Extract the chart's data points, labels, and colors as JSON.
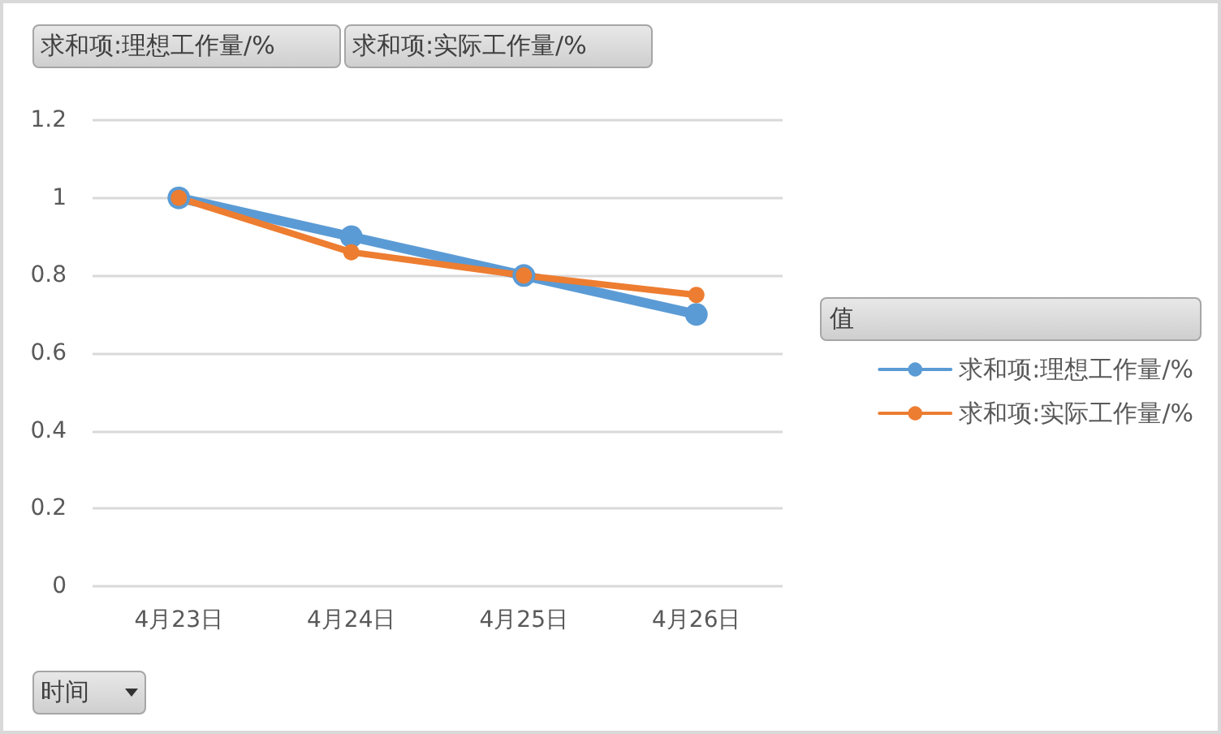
{
  "chart_data": {
    "type": "line",
    "xlabel": "时间",
    "legend_title": "值",
    "categories": [
      "4月23日",
      "4月24日",
      "4月25日",
      "4月26日"
    ],
    "series": [
      {
        "name": "求和项:理想工作量/%",
        "color": "#5b9bd5",
        "values": [
          1,
          0.9,
          0.8,
          0.7
        ]
      },
      {
        "name": "求和项:实际工作量/%",
        "color": "#ed7d31",
        "values": [
          1,
          0.86,
          0.8,
          0.75
        ]
      }
    ],
    "ylim": [
      0,
      1.2
    ],
    "yticks": [
      0,
      0.2,
      0.4,
      0.6,
      0.8,
      1,
      1.2
    ],
    "grid": "y",
    "legend": "right",
    "marker": "circle",
    "line_style": "solid"
  }
}
